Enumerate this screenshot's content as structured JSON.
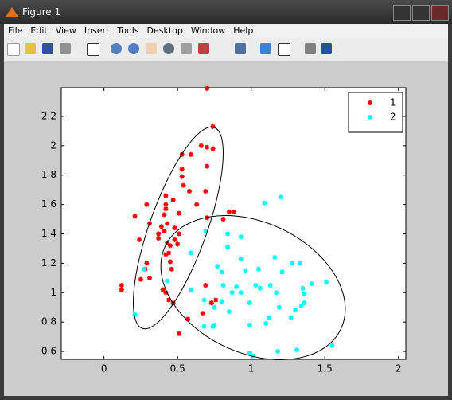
{
  "window": {
    "title": "Figure 1",
    "menu": [
      "File",
      "Edit",
      "View",
      "Insert",
      "Tools",
      "Desktop",
      "Window",
      "Help"
    ]
  },
  "chart_data": {
    "type": "scatter",
    "xlim": [
      -0.29,
      2.05
    ],
    "ylim": [
      0.546,
      2.395
    ],
    "xticks": [
      0,
      0.5,
      1,
      1.5,
      2
    ],
    "yticks": [
      0.6,
      0.8,
      1,
      1.2,
      1.4,
      1.6,
      1.8,
      2,
      2.2
    ],
    "legend": "upper right",
    "series": [
      {
        "name": "1",
        "color": "#ff0000",
        "x": [
          0.7,
          0.74,
          0.66,
          0.7,
          0.74,
          0.53,
          0.59,
          0.53,
          0.7,
          0.53,
          0.54,
          0.58,
          0.69,
          0.42,
          0.47,
          0.42,
          0.29,
          0.63,
          0.21,
          0.42,
          0.41,
          0.51,
          0.7,
          0.85,
          0.81,
          0.88,
          0.43,
          0.39,
          0.31,
          0.48,
          0.41,
          0.37,
          0.24,
          0.51,
          0.48,
          0.37,
          0.43,
          0.5,
          0.45,
          0.44,
          0.42,
          0.45,
          0.29,
          0.28,
          0.46,
          0.31,
          0.25,
          0.12,
          0.12,
          0.4,
          0.42,
          0.69,
          0.44,
          0.47,
          0.73,
          0.67,
          0.57,
          0.51,
          0.76
        ],
        "values": [
          2.39,
          2.13,
          2.0,
          1.99,
          1.98,
          1.94,
          1.94,
          1.84,
          1.86,
          1.79,
          1.73,
          1.69,
          1.69,
          1.66,
          1.63,
          1.6,
          1.6,
          1.6,
          1.52,
          1.57,
          1.53,
          1.54,
          1.51,
          1.55,
          1.5,
          1.55,
          1.47,
          1.45,
          1.47,
          1.44,
          1.42,
          1.4,
          1.36,
          1.4,
          1.36,
          1.37,
          1.34,
          1.33,
          1.32,
          1.27,
          1.26,
          1.21,
          1.2,
          1.16,
          1.16,
          1.1,
          1.09,
          1.05,
          1.02,
          1.02,
          1.0,
          1.05,
          0.95,
          0.93,
          0.93,
          0.86,
          0.82,
          0.72,
          0.95
        ]
      },
      {
        "name": "2",
        "color": "#00ffff",
        "x": [
          1.09,
          1.2,
          0.69,
          0.84,
          0.93,
          0.59,
          0.84,
          0.27,
          0.77,
          0.93,
          1.16,
          1.28,
          1.33,
          1.21,
          1.05,
          0.96,
          0.8,
          0.43,
          0.81,
          0.9,
          1.03,
          1.13,
          1.51,
          1.41,
          0.93,
          1.06,
          1.35,
          1.17,
          0.87,
          0.59,
          0.68,
          1.36,
          0.75,
          0.8,
          0.99,
          1.19,
          1.3,
          1.34,
          1.36,
          1.27,
          1.12,
          0.85,
          0.75,
          0.68,
          0.99,
          0.21,
          1.1,
          1.55,
          1.18,
          0.99,
          1.01,
          1.31,
          0.74
        ],
        "values": [
          1.61,
          1.65,
          1.42,
          1.4,
          1.38,
          1.27,
          1.31,
          1.16,
          1.18,
          1.23,
          1.24,
          1.2,
          1.2,
          1.14,
          1.16,
          1.15,
          1.14,
          1.08,
          1.05,
          1.04,
          1.05,
          1.05,
          1.07,
          1.06,
          1.0,
          1.03,
          1.03,
          1.0,
          1.0,
          1.02,
          0.95,
          0.99,
          0.9,
          0.94,
          0.93,
          0.9,
          0.88,
          0.91,
          0.93,
          0.83,
          0.83,
          0.87,
          0.78,
          0.77,
          0.78,
          0.85,
          0.79,
          0.64,
          0.6,
          0.59,
          0.57,
          0.61,
          0.77
        ]
      }
    ]
  }
}
